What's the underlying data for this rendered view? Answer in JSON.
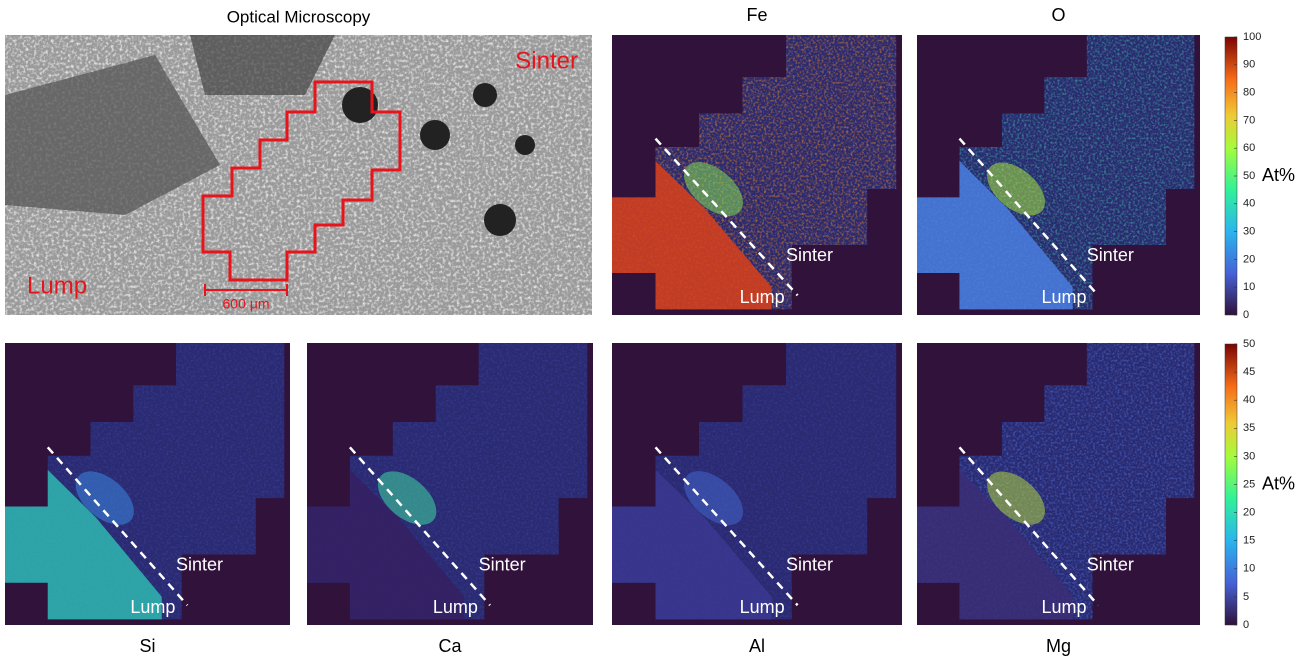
{
  "optical": {
    "title": "Optical Microscopy",
    "region_labels": [
      "Sinter",
      "Lump"
    ],
    "scale_bar": "600 μm"
  },
  "maps": [
    {
      "title": "Fe",
      "region_labels": [
        "Sinter",
        "Lump"
      ]
    },
    {
      "title": "O",
      "region_labels": [
        "Sinter",
        "Lump"
      ]
    },
    {
      "title": "Si",
      "region_labels": [
        "Sinter",
        "Lump"
      ]
    },
    {
      "title": "Ca",
      "region_labels": [
        "Sinter",
        "Lump"
      ]
    },
    {
      "title": "Al",
      "region_labels": [
        "Sinter",
        "Lump"
      ]
    },
    {
      "title": "Mg",
      "region_labels": [
        "Sinter",
        "Lump"
      ]
    }
  ],
  "colorbars": [
    {
      "label": "At%",
      "ticks": [
        0,
        10,
        20,
        30,
        40,
        50,
        60,
        70,
        80,
        90,
        100
      ]
    },
    {
      "label": "At%",
      "ticks": [
        0,
        5,
        10,
        15,
        20,
        25,
        30,
        35,
        40,
        45,
        50
      ]
    }
  ]
}
